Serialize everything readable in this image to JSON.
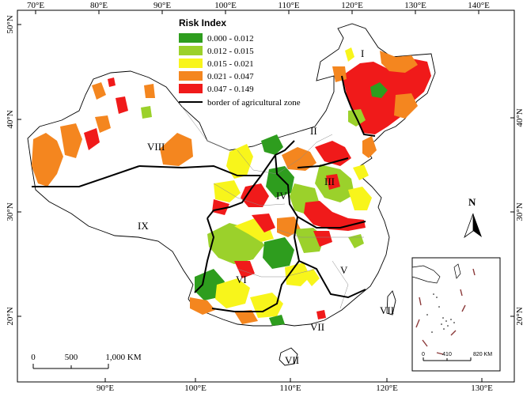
{
  "legend": {
    "title": "Risk Index",
    "classes": [
      {
        "label": "0.000 - 0.012",
        "color": "#2e9d1e"
      },
      {
        "label": "0.012 - 0.015",
        "color": "#9bd12b"
      },
      {
        "label": "0.015 - 0.021",
        "color": "#f8f51b"
      },
      {
        "label": "0.021 - 0.047",
        "color": "#f4861f"
      },
      {
        "label": "0.047 - 0.149",
        "color": "#f01a1a"
      }
    ],
    "border_label": "border of agricultural zone"
  },
  "axes": {
    "top": [
      "70°E",
      "80°E",
      "90°E",
      "100°E",
      "110°E",
      "120°E",
      "130°E",
      "140°E"
    ],
    "bottom": [
      "90°E",
      "100°E",
      "110°E",
      "120°E",
      "130°E"
    ],
    "left": [
      "50°N",
      "40°N",
      "30°N",
      "20°N"
    ],
    "right": [
      "40°N",
      "30°N",
      "20°N"
    ]
  },
  "zones": [
    "I",
    "II",
    "III",
    "IV",
    "V",
    "VI",
    "VII",
    "VII",
    "VII",
    "VIII",
    "IX"
  ],
  "scale_bar": {
    "labels": [
      "0",
      "500",
      "1,000 KM"
    ]
  },
  "inset": {
    "scale_labels": [
      "0",
      "410",
      "820 KM"
    ]
  },
  "north_arrow": {
    "label": "N"
  },
  "colors": {
    "outline": "#000000",
    "province_line": "#8a8a8a",
    "background": "#ffffff"
  }
}
